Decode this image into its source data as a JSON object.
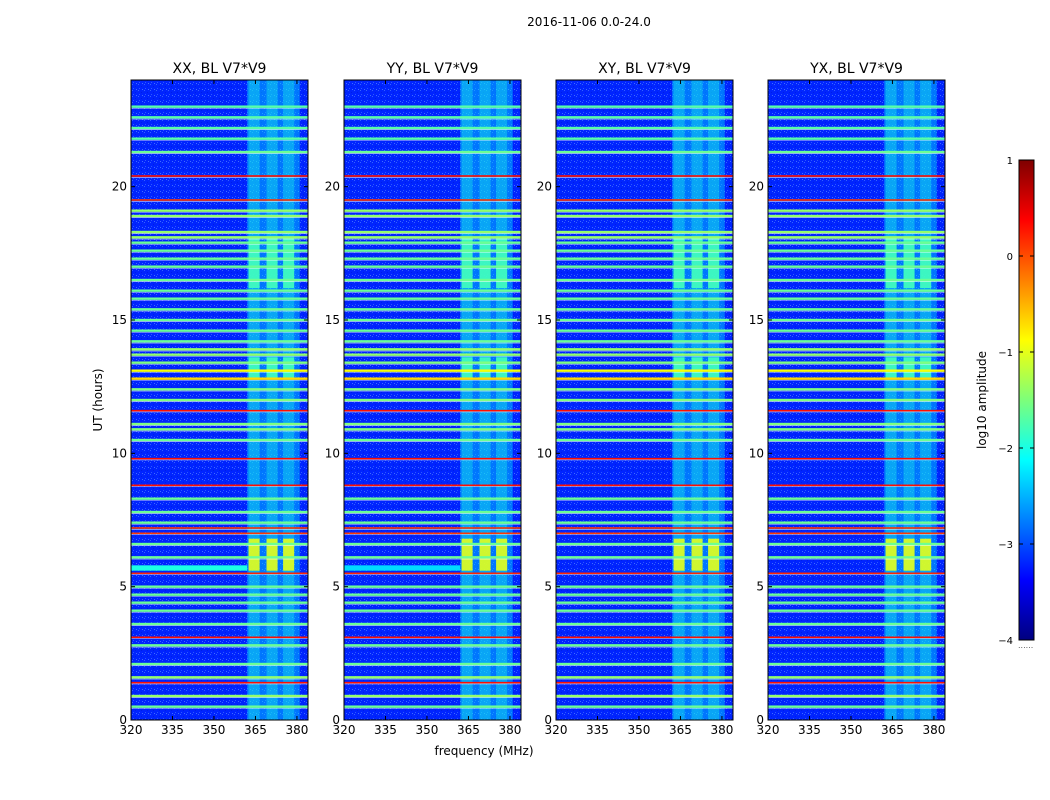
{
  "figure": {
    "suptitle": "2016-11-06 0.0-24.0",
    "xlabel": "frequency (MHz)",
    "ylabel": "UT (hours)"
  },
  "colorbar": {
    "label": "log10 amplitude",
    "ticks": [
      "1",
      "0",
      "−1",
      "−2",
      "−3",
      "−4"
    ],
    "dots": "......"
  },
  "chart_data": {
    "type": "heatmap",
    "colormap": "jet",
    "color_range": [
      -4,
      1
    ],
    "x_range": [
      320,
      384
    ],
    "y_range": [
      0,
      24
    ],
    "x_ticks": [
      320,
      335,
      350,
      365,
      380
    ],
    "y_ticks": [
      0,
      5,
      10,
      15,
      20
    ],
    "background_level": -3.2,
    "rfi_band": {
      "x_range": [
        362,
        381
      ],
      "level": -2.3,
      "channels": [
        [
          362.5,
          366.5
        ],
        [
          369,
          373
        ],
        [
          375,
          379
        ]
      ]
    },
    "strong_bursts": [
      {
        "t": [
          16.2,
          18.1
        ],
        "level": -1.8
      },
      {
        "t": [
          12.8,
          13.6
        ],
        "level": -1.8
      },
      {
        "t": [
          5.6,
          6.8
        ],
        "level": -1.0
      }
    ],
    "flagged_rows": [
      {
        "t": 23.0,
        "level": -1.7
      },
      {
        "t": 22.6,
        "level": -1.7
      },
      {
        "t": 22.2,
        "level": -1.7
      },
      {
        "t": 21.8,
        "level": -1.7
      },
      {
        "t": 21.3,
        "level": -1.6
      },
      {
        "t": 20.4,
        "level": 0.3
      },
      {
        "t": 19.5,
        "level": 0.1
      },
      {
        "t": 19.1,
        "level": -1.4
      },
      {
        "t": 18.9,
        "level": -1.4
      },
      {
        "t": 18.3,
        "level": -1.4
      },
      {
        "t": 18.1,
        "level": -1.4
      },
      {
        "t": 17.9,
        "level": -1.6
      },
      {
        "t": 17.6,
        "level": -1.6
      },
      {
        "t": 17.3,
        "level": -1.6
      },
      {
        "t": 17.0,
        "level": -1.6
      },
      {
        "t": 16.5,
        "level": -1.6
      },
      {
        "t": 16.1,
        "level": -1.6
      },
      {
        "t": 15.8,
        "level": -1.6
      },
      {
        "t": 15.4,
        "level": -1.6
      },
      {
        "t": 15.0,
        "level": -1.6
      },
      {
        "t": 14.6,
        "level": -1.6
      },
      {
        "t": 14.2,
        "level": -1.6
      },
      {
        "t": 13.9,
        "level": -1.4
      },
      {
        "t": 13.7,
        "level": -1.4
      },
      {
        "t": 13.4,
        "level": -1.5
      },
      {
        "t": 13.1,
        "level": -0.9
      },
      {
        "t": 12.8,
        "level": -0.7
      },
      {
        "t": 12.4,
        "level": -1.5
      },
      {
        "t": 12.0,
        "level": -1.5
      },
      {
        "t": 11.6,
        "level": 0.3
      },
      {
        "t": 11.1,
        "level": -1.5
      },
      {
        "t": 10.9,
        "level": -1.5
      },
      {
        "t": 10.5,
        "level": -1.6
      },
      {
        "t": 9.8,
        "level": 0.3
      },
      {
        "t": 8.8,
        "level": 0.3
      },
      {
        "t": 8.3,
        "level": -1.6
      },
      {
        "t": 7.8,
        "level": -1.6
      },
      {
        "t": 7.4,
        "level": -1.6
      },
      {
        "t": 7.2,
        "level": 0.1
      },
      {
        "t": 7.0,
        "level": 0.1
      },
      {
        "t": 6.6,
        "level": -1.6
      },
      {
        "t": 6.1,
        "level": -1.6
      },
      {
        "t": 5.5,
        "level": 0.2
      },
      {
        "t": 5.0,
        "level": -1.6
      },
      {
        "t": 4.7,
        "level": -1.6
      },
      {
        "t": 4.4,
        "level": -1.6
      },
      {
        "t": 4.1,
        "level": -1.6
      },
      {
        "t": 3.6,
        "level": -1.6
      },
      {
        "t": 3.1,
        "level": 0.3
      },
      {
        "t": 2.8,
        "level": -1.6
      },
      {
        "t": 2.1,
        "level": -1.6
      },
      {
        "t": 1.6,
        "level": -1.4
      },
      {
        "t": 1.4,
        "level": 0.3
      },
      {
        "t": 0.9,
        "level": -1.4
      },
      {
        "t": 0.5,
        "level": -1.6
      }
    ],
    "panels": [
      {
        "title": "XX, BL V7*V9",
        "show_ylabels": true,
        "extra_band": {
          "t": [
            5.6,
            5.8
          ],
          "level": -2.0
        }
      },
      {
        "title": "YY, BL V7*V9",
        "show_ylabels": true,
        "extra_band": {
          "t": [
            5.6,
            5.8
          ],
          "level": -2.3
        }
      },
      {
        "title": "XY, BL V7*V9",
        "show_ylabels": true,
        "extra_band": null
      },
      {
        "title": "YX, BL V7*V9",
        "show_ylabels": true,
        "extra_band": null
      }
    ]
  }
}
